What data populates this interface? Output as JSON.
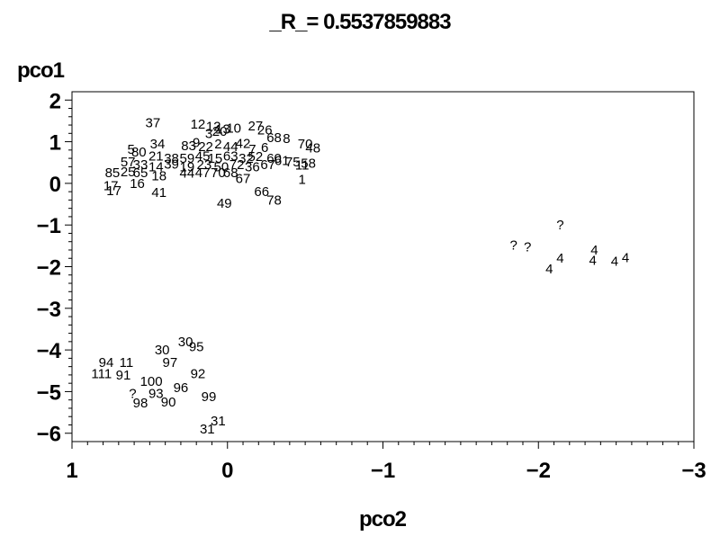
{
  "chart_data": {
    "type": "scatter",
    "title": "_R_= 0.5537859883",
    "xlabel": "pco2",
    "ylabel": "pco1",
    "xlim": [
      1,
      -3
    ],
    "ylim": [
      -6.2,
      2.2
    ],
    "x_ticks": [
      1,
      0,
      -1,
      -2,
      -3
    ],
    "x_tick_labels": [
      "1",
      "0",
      "−1",
      "−2",
      "−3"
    ],
    "y_ticks": [
      2,
      1,
      0,
      -1,
      -2,
      -3,
      -4,
      -5,
      -6
    ],
    "y_tick_labels": [
      "2",
      "1",
      "0",
      "−1",
      "−2",
      "−3",
      "−4",
      "−5",
      "−6"
    ],
    "grid": false,
    "legend": "none",
    "marker": "text-label",
    "points": [
      {
        "x": 0.48,
        "y": 1.45,
        "label": "37"
      },
      {
        "x": 0.19,
        "y": 1.42,
        "label": "12"
      },
      {
        "x": 0.09,
        "y": 1.37,
        "label": "12"
      },
      {
        "x": 0.03,
        "y": 1.3,
        "label": "13"
      },
      {
        "x": -0.04,
        "y": 1.33,
        "label": "10"
      },
      {
        "x": -0.18,
        "y": 1.38,
        "label": "27"
      },
      {
        "x": -0.24,
        "y": 1.28,
        "label": "26"
      },
      {
        "x": 0.12,
        "y": 1.2,
        "label": "3"
      },
      {
        "x": 0.05,
        "y": 1.25,
        "label": "20"
      },
      {
        "x": -0.3,
        "y": 1.1,
        "label": "68"
      },
      {
        "x": -0.38,
        "y": 1.08,
        "label": "8"
      },
      {
        "x": -0.5,
        "y": 0.95,
        "label": "70"
      },
      {
        "x": -0.55,
        "y": 0.85,
        "label": "48"
      },
      {
        "x": 0.45,
        "y": 0.95,
        "label": "34"
      },
      {
        "x": 0.25,
        "y": 0.9,
        "label": "83"
      },
      {
        "x": 0.2,
        "y": 0.98,
        "label": "9"
      },
      {
        "x": 0.14,
        "y": 0.88,
        "label": "22"
      },
      {
        "x": 0.06,
        "y": 0.95,
        "label": "2"
      },
      {
        "x": -0.02,
        "y": 0.88,
        "label": "44"
      },
      {
        "x": -0.1,
        "y": 0.96,
        "label": "42"
      },
      {
        "x": -0.16,
        "y": 0.82,
        "label": "7"
      },
      {
        "x": -0.24,
        "y": 0.86,
        "label": "6"
      },
      {
        "x": 0.62,
        "y": 0.82,
        "label": "5"
      },
      {
        "x": 0.57,
        "y": 0.75,
        "label": "80"
      },
      {
        "x": 0.46,
        "y": 0.66,
        "label": "21"
      },
      {
        "x": 0.36,
        "y": 0.6,
        "label": "38"
      },
      {
        "x": 0.26,
        "y": 0.6,
        "label": "59"
      },
      {
        "x": 0.16,
        "y": 0.66,
        "label": "45"
      },
      {
        "x": 0.08,
        "y": 0.6,
        "label": "15"
      },
      {
        "x": -0.02,
        "y": 0.66,
        "label": "63"
      },
      {
        "x": -0.12,
        "y": 0.6,
        "label": "32"
      },
      {
        "x": -0.18,
        "y": 0.64,
        "label": "52"
      },
      {
        "x": -0.3,
        "y": 0.6,
        "label": "60"
      },
      {
        "x": -0.35,
        "y": 0.55,
        "label": "61"
      },
      {
        "x": -0.42,
        "y": 0.52,
        "label": "75"
      },
      {
        "x": -0.48,
        "y": 0.44,
        "label": "11"
      },
      {
        "x": -0.52,
        "y": 0.48,
        "label": "58"
      },
      {
        "x": 0.64,
        "y": 0.52,
        "label": "57"
      },
      {
        "x": 0.56,
        "y": 0.45,
        "label": "33"
      },
      {
        "x": 0.46,
        "y": 0.4,
        "label": "14"
      },
      {
        "x": 0.36,
        "y": 0.46,
        "label": "39"
      },
      {
        "x": 0.26,
        "y": 0.4,
        "label": "19"
      },
      {
        "x": 0.15,
        "y": 0.45,
        "label": "23"
      },
      {
        "x": 0.04,
        "y": 0.4,
        "label": "50"
      },
      {
        "x": -0.06,
        "y": 0.45,
        "label": "72"
      },
      {
        "x": -0.16,
        "y": 0.4,
        "label": "36"
      },
      {
        "x": -0.26,
        "y": 0.45,
        "label": "67"
      },
      {
        "x": 0.74,
        "y": 0.26,
        "label": "85"
      },
      {
        "x": 0.64,
        "y": 0.28,
        "label": "25"
      },
      {
        "x": 0.56,
        "y": 0.26,
        "label": "65"
      },
      {
        "x": 0.44,
        "y": 0.18,
        "label": "18"
      },
      {
        "x": 0.26,
        "y": 0.25,
        "label": "44"
      },
      {
        "x": 0.16,
        "y": 0.26,
        "label": "47"
      },
      {
        "x": 0.06,
        "y": 0.26,
        "label": "70"
      },
      {
        "x": -0.02,
        "y": 0.26,
        "label": "68"
      },
      {
        "x": -0.1,
        "y": 0.12,
        "label": "67"
      },
      {
        "x": -0.48,
        "y": 0.1,
        "label": "1"
      },
      {
        "x": 0.58,
        "y": 0.0,
        "label": "16"
      },
      {
        "x": 0.73,
        "y": -0.18,
        "label": "17"
      },
      {
        "x": 0.75,
        "y": -0.06,
        "label": "17"
      },
      {
        "x": 0.44,
        "y": -0.22,
        "label": "41"
      },
      {
        "x": -0.22,
        "y": -0.2,
        "label": "66"
      },
      {
        "x": -0.3,
        "y": -0.4,
        "label": "78"
      },
      {
        "x": 0.02,
        "y": -0.48,
        "label": "49"
      },
      {
        "x": -2.14,
        "y": -1.0,
        "label": "?"
      },
      {
        "x": -1.84,
        "y": -1.48,
        "label": "?"
      },
      {
        "x": -1.93,
        "y": -1.52,
        "label": "?"
      },
      {
        "x": -2.36,
        "y": -1.6,
        "label": "4"
      },
      {
        "x": -2.56,
        "y": -1.78,
        "label": "4"
      },
      {
        "x": -2.49,
        "y": -1.87,
        "label": "4"
      },
      {
        "x": -2.35,
        "y": -1.85,
        "label": "4"
      },
      {
        "x": -2.14,
        "y": -1.8,
        "label": "4"
      },
      {
        "x": -2.07,
        "y": -2.05,
        "label": "4"
      },
      {
        "x": 0.27,
        "y": -3.8,
        "label": "30"
      },
      {
        "x": 0.2,
        "y": -3.92,
        "label": "95"
      },
      {
        "x": 0.42,
        "y": -4.0,
        "label": "30"
      },
      {
        "x": 0.37,
        "y": -4.3,
        "label": "97"
      },
      {
        "x": 0.78,
        "y": -4.3,
        "label": "94"
      },
      {
        "x": 0.65,
        "y": -4.3,
        "label": "11"
      },
      {
        "x": 0.81,
        "y": -4.57,
        "label": "111"
      },
      {
        "x": 0.67,
        "y": -4.6,
        "label": "91"
      },
      {
        "x": 0.49,
        "y": -4.75,
        "label": "100"
      },
      {
        "x": 0.19,
        "y": -4.57,
        "label": "92"
      },
      {
        "x": 0.3,
        "y": -4.9,
        "label": "96"
      },
      {
        "x": 0.61,
        "y": -5.05,
        "label": "?"
      },
      {
        "x": 0.46,
        "y": -5.05,
        "label": "93"
      },
      {
        "x": 0.12,
        "y": -5.12,
        "label": "99"
      },
      {
        "x": 0.56,
        "y": -5.27,
        "label": "98"
      },
      {
        "x": 0.38,
        "y": -5.25,
        "label": "90"
      },
      {
        "x": 0.06,
        "y": -5.7,
        "label": "31"
      },
      {
        "x": 0.13,
        "y": -5.9,
        "label": "31"
      }
    ]
  }
}
